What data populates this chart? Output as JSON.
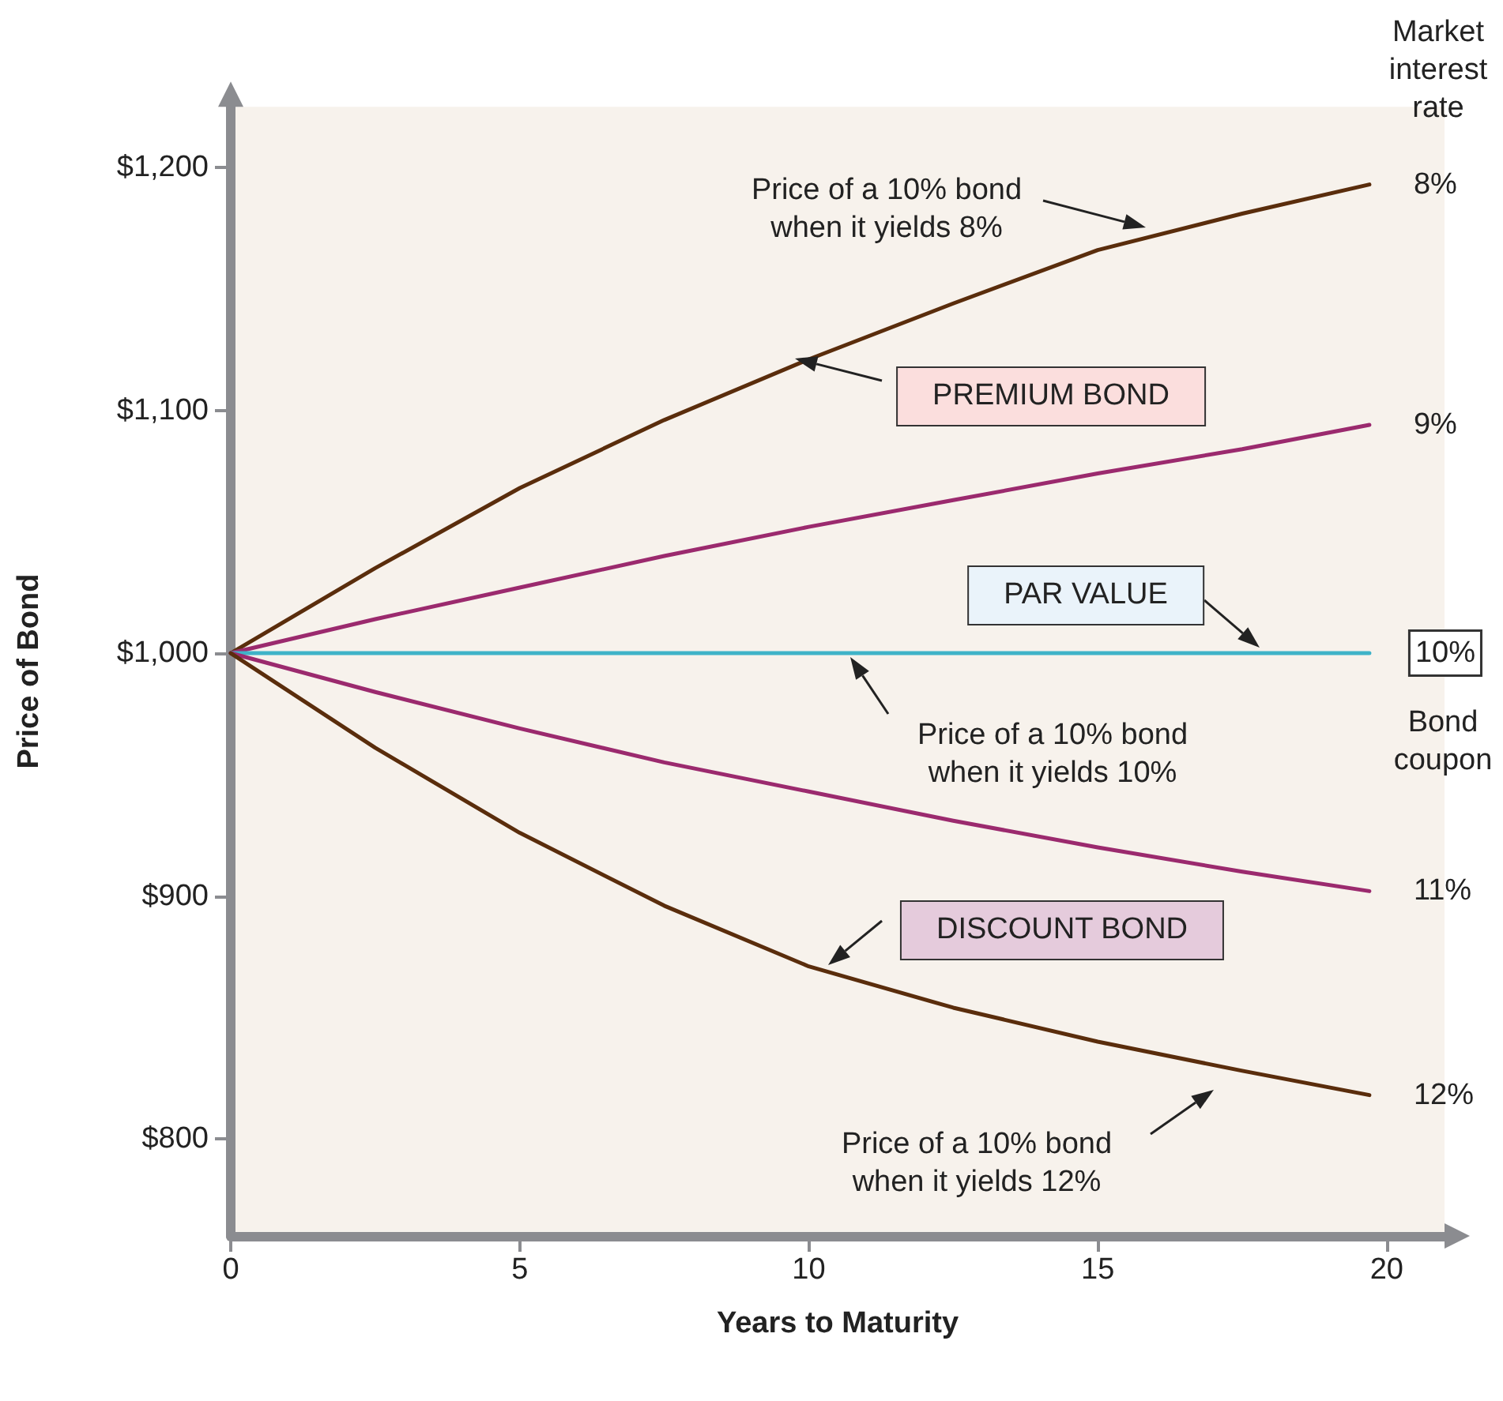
{
  "chart_data": {
    "type": "line",
    "xlabel": "Years to Maturity",
    "ylabel": "Price of Bond",
    "xlim": [
      0,
      21
    ],
    "xticks": [
      0,
      5,
      10,
      15,
      20
    ],
    "ylim": [
      760,
      1225
    ],
    "yticks": [
      {
        "value": 800,
        "label": "$800"
      },
      {
        "value": 900,
        "label": "$900"
      },
      {
        "value": 1000,
        "label": "$1,000"
      },
      {
        "value": 1100,
        "label": "$1,100"
      },
      {
        "value": 1200,
        "label": "$1,200"
      }
    ],
    "x": [
      0,
      2.5,
      5,
      7.5,
      10,
      12.5,
      15,
      17.5,
      19.7
    ],
    "series": [
      {
        "name": "8%",
        "color": "#5a2d0c",
        "values": [
          1000,
          1035,
          1068,
          1096,
          1121,
          1144,
          1166,
          1181,
          1193
        ]
      },
      {
        "name": "9%",
        "color": "#9b2a6e",
        "values": [
          1000,
          1014,
          1027,
          1040,
          1052,
          1063,
          1074,
          1084,
          1094
        ]
      },
      {
        "name": "10%",
        "color": "#3fb3c8",
        "values": [
          1000,
          1000,
          1000,
          1000,
          1000,
          1000,
          1000,
          1000,
          1000
        ]
      },
      {
        "name": "11%",
        "color": "#9b2a6e",
        "values": [
          1000,
          984,
          969,
          955,
          943,
          931,
          920,
          910,
          902
        ]
      },
      {
        "name": "12%",
        "color": "#5a2d0c",
        "values": [
          1000,
          961,
          926,
          896,
          871,
          854,
          840,
          828,
          818
        ]
      }
    ],
    "annotations": [
      "Price of a 10% bond\nwhen it yields 8%",
      "PREMIUM BOND",
      "PAR VALUE",
      "Price of a 10% bond\nwhen it yields 10%",
      "DISCOUNT BOND",
      "Price of a 10% bond\nwhen it yields 12%",
      "Market\ninterest\nrate",
      "Bond\ncoupon"
    ],
    "grid": false,
    "legend": false,
    "marker": "none",
    "line_style": "solid"
  }
}
